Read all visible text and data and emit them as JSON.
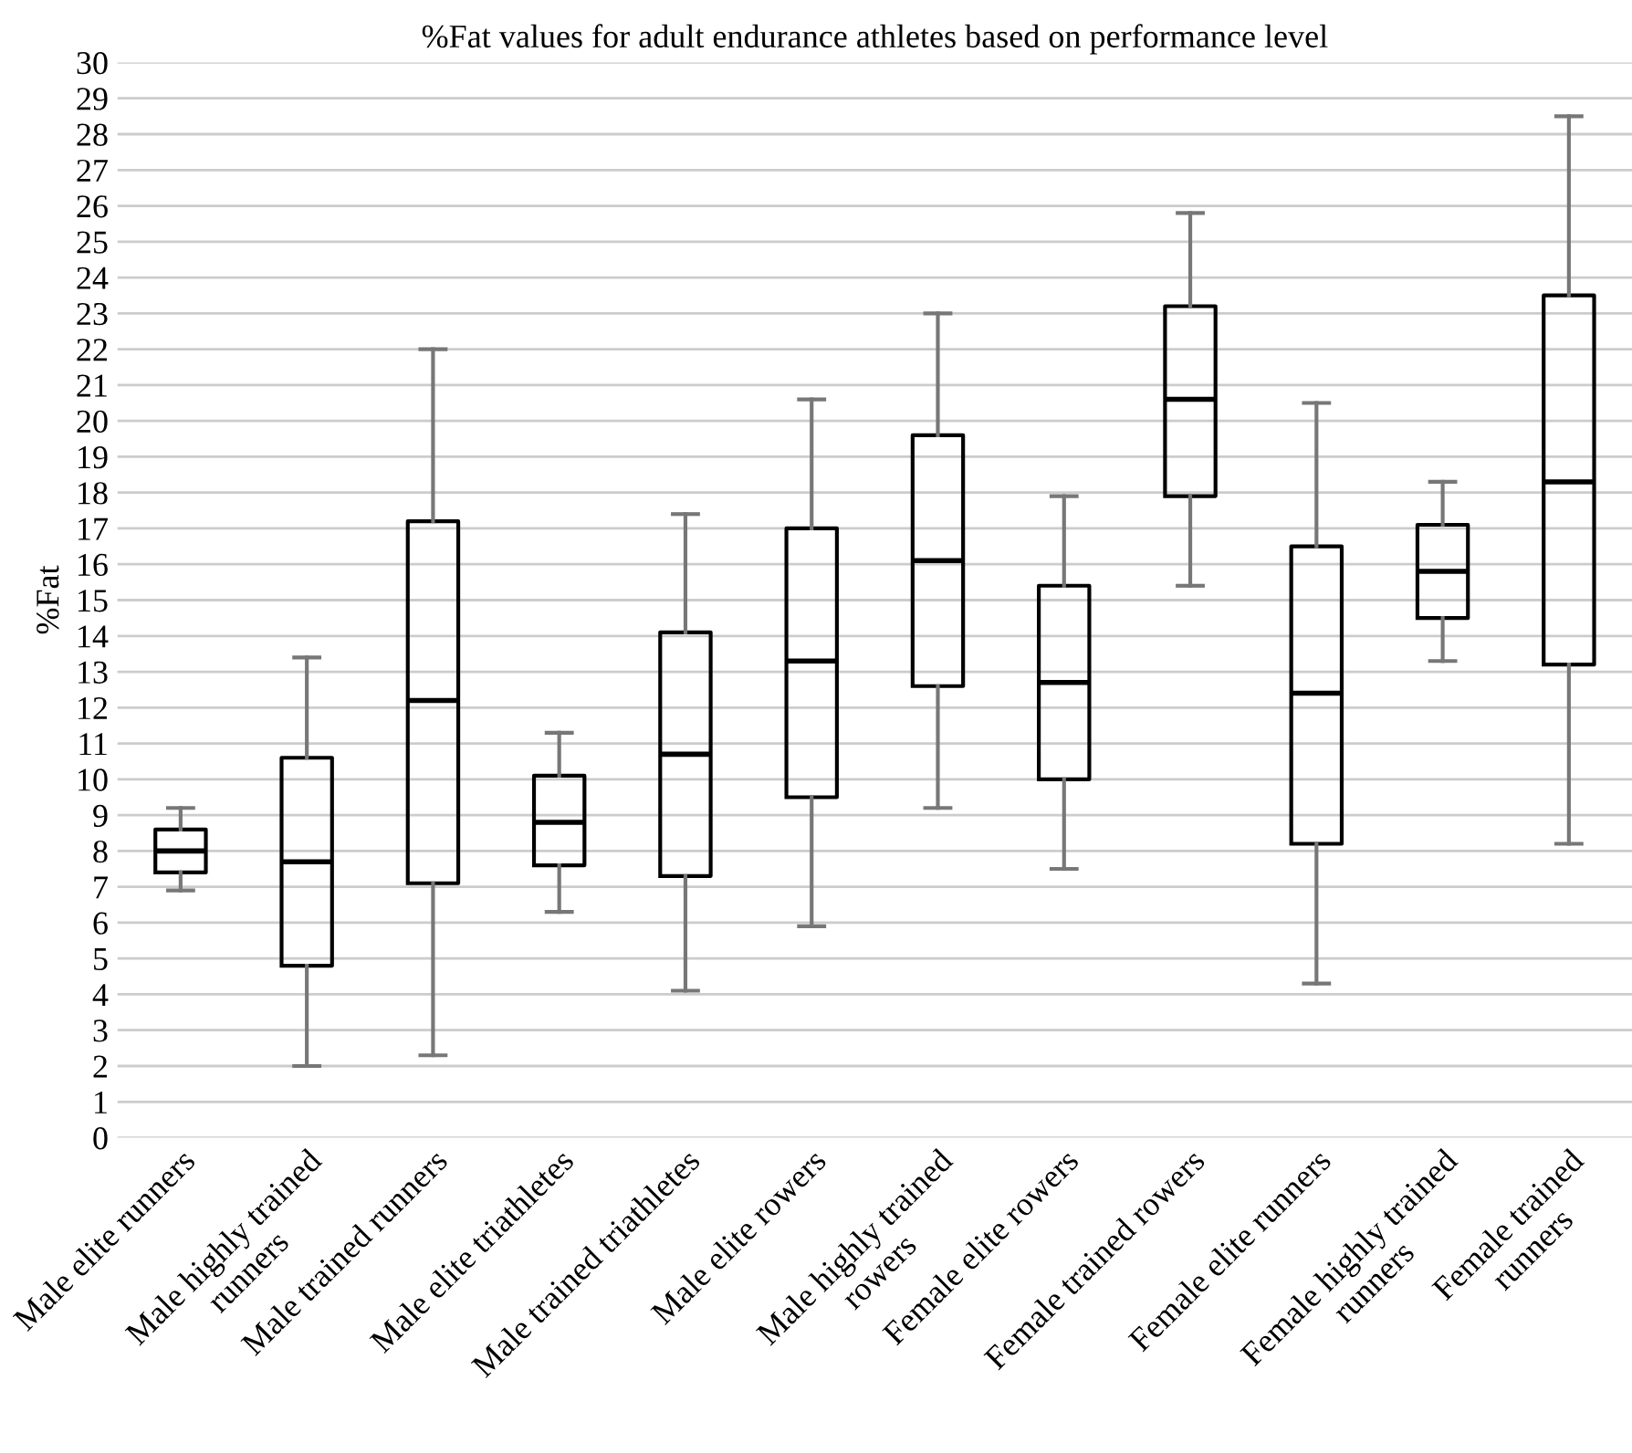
{
  "chart_data": {
    "type": "box",
    "title": "%Fat values for adult endurance athletes based on performance level",
    "ylabel": "%Fat",
    "categories": [
      "Male elite runners",
      "Male highly trained\nrunners",
      "Male trained runners",
      "Male elite triathletes",
      "Male trained triathletes",
      "Male elite rowers",
      "Male highly trained\nrowers",
      "Female elite rowers",
      "Female trained rowers",
      "Female elite runners",
      "Female highly trained\nrunners",
      "Female trained\nrunners"
    ],
    "boxes": [
      {
        "low": 6.9,
        "q1": 7.4,
        "median": 8.0,
        "q3": 8.6,
        "high": 9.2
      },
      {
        "low": 2.0,
        "q1": 4.8,
        "median": 7.7,
        "q3": 10.6,
        "high": 13.4
      },
      {
        "low": 2.3,
        "q1": 7.1,
        "median": 12.2,
        "q3": 17.2,
        "high": 22.0
      },
      {
        "low": 6.3,
        "q1": 7.6,
        "median": 8.8,
        "q3": 10.1,
        "high": 11.3
      },
      {
        "low": 4.1,
        "q1": 7.3,
        "median": 10.7,
        "q3": 14.1,
        "high": 17.4
      },
      {
        "low": 5.9,
        "q1": 9.5,
        "median": 13.3,
        "q3": 17.0,
        "high": 20.6
      },
      {
        "low": 9.2,
        "q1": 12.6,
        "median": 16.1,
        "q3": 19.6,
        "high": 23.0
      },
      {
        "low": 7.5,
        "q1": 10.0,
        "median": 12.7,
        "q3": 15.4,
        "high": 17.9
      },
      {
        "low": 15.4,
        "q1": 17.9,
        "median": 20.6,
        "q3": 23.2,
        "high": 25.8
      },
      {
        "low": 4.3,
        "q1": 8.2,
        "median": 12.4,
        "q3": 16.5,
        "high": 20.5
      },
      {
        "low": 13.3,
        "q1": 14.5,
        "median": 15.8,
        "q3": 17.1,
        "high": 18.3
      },
      {
        "low": 8.2,
        "q1": 13.2,
        "median": 18.3,
        "q3": 23.5,
        "high": 28.5
      }
    ],
    "ylim": [
      0,
      30
    ],
    "yticks": [
      0,
      1,
      2,
      3,
      4,
      5,
      6,
      7,
      8,
      9,
      10,
      11,
      12,
      13,
      14,
      15,
      16,
      17,
      18,
      19,
      20,
      21,
      22,
      23,
      24,
      25,
      26,
      27,
      28,
      29,
      30
    ],
    "grid": "y",
    "legend": false
  }
}
